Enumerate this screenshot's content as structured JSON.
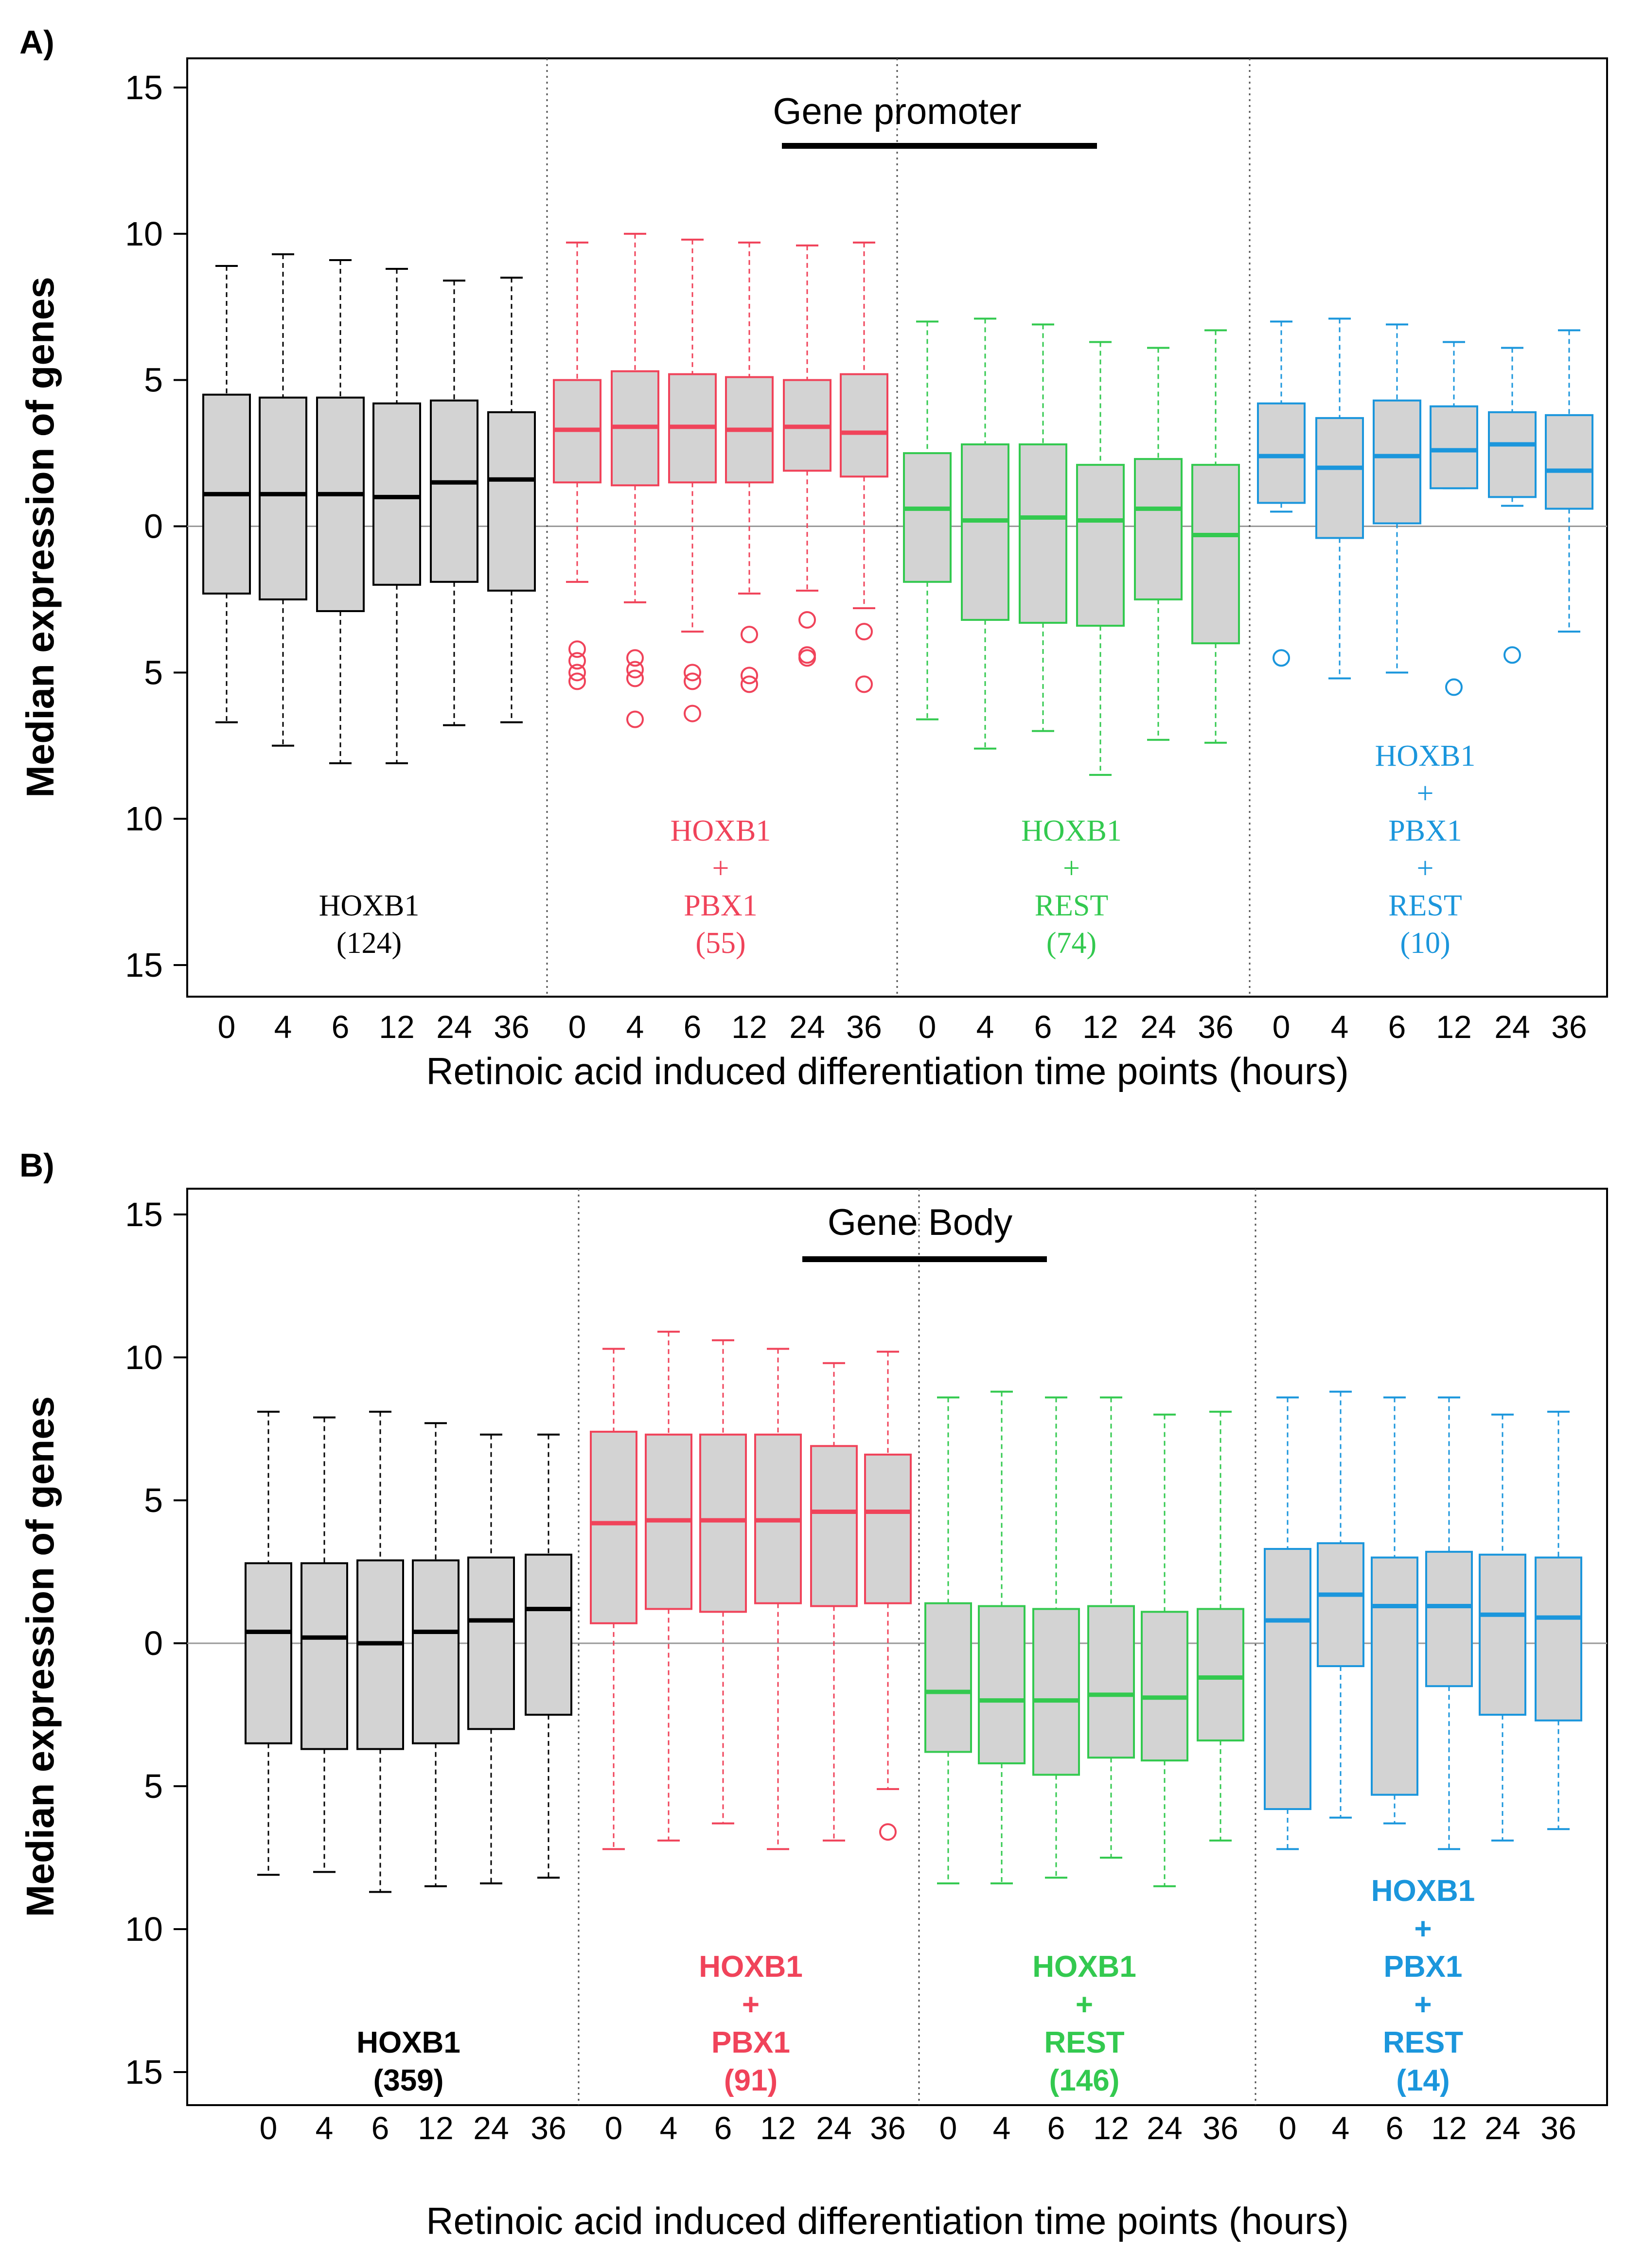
{
  "chart_data": [
    {
      "type": "boxplot",
      "panel_label": "A)",
      "title": "Gene promoter",
      "xlabel": "Retinoic acid induced differentiation time points (hours)",
      "ylabel": "Median expression of genes",
      "ylim": [
        -15,
        15
      ],
      "yticks": [
        15,
        10,
        5,
        0,
        5,
        10,
        15
      ],
      "categories": [
        "0",
        "4",
        "6",
        "12",
        "24",
        "36"
      ],
      "groups": [
        {
          "name": "HOXB1",
          "label_lines": [
            "HOXB1",
            "(124)"
          ],
          "color": "#000000",
          "boxes": [
            {
              "whisker_low": -6.7,
              "q1": -2.3,
              "median": 1.1,
              "q3": 4.5,
              "whisker_high": 8.9,
              "outliers": []
            },
            {
              "whisker_low": -7.5,
              "q1": -2.5,
              "median": 1.1,
              "q3": 4.4,
              "whisker_high": 9.3,
              "outliers": []
            },
            {
              "whisker_low": -8.1,
              "q1": -2.9,
              "median": 1.1,
              "q3": 4.4,
              "whisker_high": 9.1,
              "outliers": []
            },
            {
              "whisker_low": -8.1,
              "q1": -2.0,
              "median": 1.0,
              "q3": 4.2,
              "whisker_high": 8.8,
              "outliers": []
            },
            {
              "whisker_low": -6.8,
              "q1": -1.9,
              "median": 1.5,
              "q3": 4.3,
              "whisker_high": 8.4,
              "outliers": []
            },
            {
              "whisker_low": -6.7,
              "q1": -2.2,
              "median": 1.6,
              "q3": 3.9,
              "whisker_high": 8.5,
              "outliers": []
            }
          ]
        },
        {
          "name": "HOXB1 + PBX1",
          "label_lines": [
            "HOXB1",
            "+",
            "PBX1",
            "(55)"
          ],
          "color": "#F0435A",
          "boxes": [
            {
              "whisker_low": -1.9,
              "q1": 1.5,
              "median": 3.3,
              "q3": 5.0,
              "whisker_high": 9.7,
              "outliers": [
                -4.2,
                -4.6,
                -5.0,
                -5.3
              ]
            },
            {
              "whisker_low": -2.6,
              "q1": 1.4,
              "median": 3.4,
              "q3": 5.3,
              "whisker_high": 10.0,
              "outliers": [
                -4.5,
                -4.9,
                -5.2,
                -6.6
              ]
            },
            {
              "whisker_low": -3.6,
              "q1": 1.5,
              "median": 3.4,
              "q3": 5.2,
              "whisker_high": 9.8,
              "outliers": [
                -5.0,
                -5.3,
                -6.4
              ]
            },
            {
              "whisker_low": -2.3,
              "q1": 1.5,
              "median": 3.3,
              "q3": 5.1,
              "whisker_high": 9.7,
              "outliers": [
                -3.7,
                -5.1,
                -5.4
              ]
            },
            {
              "whisker_low": -2.2,
              "q1": 1.9,
              "median": 3.4,
              "q3": 5.0,
              "whisker_high": 9.6,
              "outliers": [
                -3.2,
                -4.4,
                -4.5
              ]
            },
            {
              "whisker_low": -2.8,
              "q1": 1.7,
              "median": 3.2,
              "q3": 5.2,
              "whisker_high": 9.7,
              "outliers": [
                -3.6,
                -5.4
              ]
            }
          ]
        },
        {
          "name": "HOXB1 + REST",
          "label_lines": [
            "HOXB1",
            "+",
            "REST",
            "(74)"
          ],
          "color": "#33C94F",
          "boxes": [
            {
              "whisker_low": -6.6,
              "q1": -1.9,
              "median": 0.6,
              "q3": 2.5,
              "whisker_high": 7.0,
              "outliers": []
            },
            {
              "whisker_low": -7.6,
              "q1": -3.2,
              "median": 0.2,
              "q3": 2.8,
              "whisker_high": 7.1,
              "outliers": []
            },
            {
              "whisker_low": -7.0,
              "q1": -3.3,
              "median": 0.3,
              "q3": 2.8,
              "whisker_high": 6.9,
              "outliers": []
            },
            {
              "whisker_low": -8.5,
              "q1": -3.4,
              "median": 0.2,
              "q3": 2.1,
              "whisker_high": 6.3,
              "outliers": []
            },
            {
              "whisker_low": -7.3,
              "q1": -2.5,
              "median": 0.6,
              "q3": 2.3,
              "whisker_high": 6.1,
              "outliers": []
            },
            {
              "whisker_low": -7.4,
              "q1": -4.0,
              "median": -0.3,
              "q3": 2.1,
              "whisker_high": 6.7,
              "outliers": []
            }
          ]
        },
        {
          "name": "HOXB1 + PBX1 + REST",
          "label_lines": [
            "HOXB1",
            "+",
            "PBX1",
            "+",
            "REST",
            "(10)"
          ],
          "color": "#1B96DC",
          "boxes": [
            {
              "whisker_low": 0.5,
              "q1": 0.8,
              "median": 2.4,
              "q3": 4.2,
              "whisker_high": 7.0,
              "outliers": [
                -4.5
              ]
            },
            {
              "whisker_low": -5.2,
              "q1": -0.4,
              "median": 2.0,
              "q3": 3.7,
              "whisker_high": 7.1,
              "outliers": []
            },
            {
              "whisker_low": -5.0,
              "q1": 0.1,
              "median": 2.4,
              "q3": 4.3,
              "whisker_high": 6.9,
              "outliers": []
            },
            {
              "whisker_low": 1.3,
              "q1": 1.3,
              "median": 2.6,
              "q3": 4.1,
              "whisker_high": 6.3,
              "outliers": [
                -5.5
              ]
            },
            {
              "whisker_low": 0.7,
              "q1": 1.0,
              "median": 2.8,
              "q3": 3.9,
              "whisker_high": 6.1,
              "outliers": [
                -4.4
              ]
            },
            {
              "whisker_low": -3.6,
              "q1": 0.6,
              "median": 1.9,
              "q3": 3.8,
              "whisker_high": 6.7,
              "outliers": []
            }
          ]
        }
      ]
    },
    {
      "type": "boxplot",
      "panel_label": "B)",
      "title": "Gene Body",
      "xlabel": "Retinoic acid induced differentiation time points (hours)",
      "ylabel": "Median expression of genes",
      "ylim": [
        -15,
        15
      ],
      "yticks": [
        15,
        10,
        5,
        0,
        5,
        10,
        15
      ],
      "categories": [
        "0",
        "4",
        "6",
        "12",
        "24",
        "36"
      ],
      "groups": [
        {
          "name": "HOXB1",
          "label_lines": [
            "HOXB1",
            "(359)"
          ],
          "color": "#000000",
          "boxes": [
            {
              "whisker_low": -8.1,
              "q1": -3.5,
              "median": 0.4,
              "q3": 2.8,
              "whisker_high": 8.1,
              "outliers": []
            },
            {
              "whisker_low": -8.0,
              "q1": -3.7,
              "median": 0.2,
              "q3": 2.8,
              "whisker_high": 7.9,
              "outliers": []
            },
            {
              "whisker_low": -8.7,
              "q1": -3.7,
              "median": 0.0,
              "q3": 2.9,
              "whisker_high": 8.1,
              "outliers": []
            },
            {
              "whisker_low": -8.5,
              "q1": -3.5,
              "median": 0.4,
              "q3": 2.9,
              "whisker_high": 7.7,
              "outliers": []
            },
            {
              "whisker_low": -8.4,
              "q1": -3.0,
              "median": 0.8,
              "q3": 3.0,
              "whisker_high": 7.3,
              "outliers": []
            },
            {
              "whisker_low": -8.2,
              "q1": -2.5,
              "median": 1.2,
              "q3": 3.1,
              "whisker_high": 7.3,
              "outliers": []
            }
          ]
        },
        {
          "name": "HOXB1 + PBX1",
          "label_lines": [
            "HOXB1",
            "+",
            "PBX1",
            "(91)"
          ],
          "color": "#F0435A",
          "boxes": [
            {
              "whisker_low": -7.2,
              "q1": 0.7,
              "median": 4.2,
              "q3": 7.4,
              "whisker_high": 10.3,
              "outliers": []
            },
            {
              "whisker_low": -6.9,
              "q1": 1.2,
              "median": 4.3,
              "q3": 7.3,
              "whisker_high": 10.9,
              "outliers": []
            },
            {
              "whisker_low": -6.3,
              "q1": 1.1,
              "median": 4.3,
              "q3": 7.3,
              "whisker_high": 10.6,
              "outliers": []
            },
            {
              "whisker_low": -7.2,
              "q1": 1.4,
              "median": 4.3,
              "q3": 7.3,
              "whisker_high": 10.3,
              "outliers": []
            },
            {
              "whisker_low": -6.9,
              "q1": 1.3,
              "median": 4.6,
              "q3": 6.9,
              "whisker_high": 9.8,
              "outliers": []
            },
            {
              "whisker_low": -5.1,
              "q1": 1.4,
              "median": 4.6,
              "q3": 6.6,
              "whisker_high": 10.2,
              "outliers": [
                -6.6
              ]
            }
          ]
        },
        {
          "name": "HOXB1 + REST",
          "label_lines": [
            "HOXB1",
            "+",
            "REST",
            "(146)"
          ],
          "color": "#33C94F",
          "boxes": [
            {
              "whisker_low": -8.4,
              "q1": -3.8,
              "median": -1.7,
              "q3": 1.4,
              "whisker_high": 8.6,
              "outliers": []
            },
            {
              "whisker_low": -8.4,
              "q1": -4.2,
              "median": -2.0,
              "q3": 1.3,
              "whisker_high": 8.8,
              "outliers": []
            },
            {
              "whisker_low": -8.2,
              "q1": -4.6,
              "median": -2.0,
              "q3": 1.2,
              "whisker_high": 8.6,
              "outliers": []
            },
            {
              "whisker_low": -7.5,
              "q1": -4.0,
              "median": -1.8,
              "q3": 1.3,
              "whisker_high": 8.6,
              "outliers": []
            },
            {
              "whisker_low": -8.5,
              "q1": -4.1,
              "median": -1.9,
              "q3": 1.1,
              "whisker_high": 8.0,
              "outliers": []
            },
            {
              "whisker_low": -6.9,
              "q1": -3.4,
              "median": -1.2,
              "q3": 1.2,
              "whisker_high": 8.1,
              "outliers": []
            }
          ]
        },
        {
          "name": "HOXB1 + PBX1 + REST",
          "label_lines": [
            "HOXB1",
            "+",
            "PBX1",
            "+",
            "REST",
            "(14)"
          ],
          "color": "#1B96DC",
          "boxes": [
            {
              "whisker_low": -7.2,
              "q1": -5.8,
              "median": 0.8,
              "q3": 3.3,
              "whisker_high": 8.6,
              "outliers": []
            },
            {
              "whisker_low": -6.1,
              "q1": -0.8,
              "median": 1.7,
              "q3": 3.5,
              "whisker_high": 8.8,
              "outliers": []
            },
            {
              "whisker_low": -6.3,
              "q1": -5.3,
              "median": 1.3,
              "q3": 3.0,
              "whisker_high": 8.6,
              "outliers": []
            },
            {
              "whisker_low": -7.2,
              "q1": -1.5,
              "median": 1.3,
              "q3": 3.2,
              "whisker_high": 8.6,
              "outliers": []
            },
            {
              "whisker_low": -6.9,
              "q1": -2.5,
              "median": 1.0,
              "q3": 3.1,
              "whisker_high": 8.0,
              "outliers": []
            },
            {
              "whisker_low": -6.5,
              "q1": -2.7,
              "median": 0.9,
              "q3": 3.0,
              "whisker_high": 8.1,
              "outliers": []
            }
          ]
        }
      ]
    }
  ]
}
